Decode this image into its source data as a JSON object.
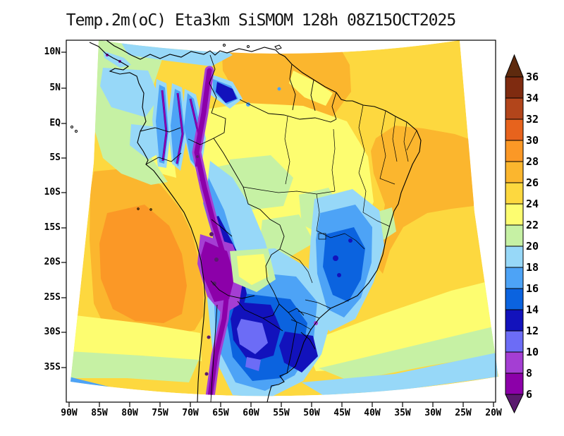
{
  "title": "Temp.2m(oC) Eta3km SiSMOM 128h 08Z15OCT2025",
  "chart_data": {
    "type": "heatmap",
    "title": "Temp.2m(oC) Eta3km SiSMOM 128h 08Z15OCT2025",
    "variable": "Temp.2m(oC)",
    "model": "Eta3km SiSMOM",
    "forecast_hour": "128h",
    "init_time": "08Z15OCT2025",
    "x_ticks": [
      "90W",
      "85W",
      "80W",
      "75W",
      "70W",
      "65W",
      "60W",
      "55W",
      "50W",
      "45W",
      "40W",
      "35W",
      "30W",
      "25W",
      "20W"
    ],
    "y_ticks": [
      "10N",
      "5N",
      "EQ",
      "5S",
      "10S",
      "15S",
      "20S",
      "25S",
      "30S",
      "35S"
    ],
    "colorbar": {
      "units": "oC",
      "tick_labels": [
        "36",
        "34",
        "32",
        "30",
        "28",
        "26",
        "24",
        "22",
        "20",
        "18",
        "16",
        "14",
        "12",
        "10",
        "8",
        "6"
      ],
      "palette": [
        {
          "range": ">36",
          "color": "#5e2a0e"
        },
        {
          "range": "34-36",
          "color": "#7f2b10"
        },
        {
          "range": "32-34",
          "color": "#b2451b"
        },
        {
          "range": "30-32",
          "color": "#e7631d"
        },
        {
          "range": "28-30",
          "color": "#fb9826"
        },
        {
          "range": "26-28",
          "color": "#fbb62e"
        },
        {
          "range": "24-26",
          "color": "#fdd83f"
        },
        {
          "range": "22-24",
          "color": "#fdfd70"
        },
        {
          "range": "20-22",
          "color": "#c6f1a4"
        },
        {
          "range": "18-20",
          "color": "#97d8f8"
        },
        {
          "range": "16-18",
          "color": "#4da3f6"
        },
        {
          "range": "14-16",
          "color": "#0b63df"
        },
        {
          "range": "12-14",
          "color": "#1212bc"
        },
        {
          "range": "10-12",
          "color": "#6c6cf6"
        },
        {
          "range": "8-10",
          "color": "#a43ed3"
        },
        {
          "range": "6-8",
          "color": "#8c00a9"
        },
        {
          "range": "<6",
          "color": "#5a1a6e"
        }
      ]
    },
    "features": [
      {
        "area": "Andes cordillera crest (Colombia to S Chile)",
        "band": "<6-8"
      },
      {
        "area": "Altiplano, S Peru / W Bolivia",
        "band": "6-10"
      },
      {
        "area": "Subtropical SE Pacific offshore Peru-N Chile",
        "band": "28-30"
      },
      {
        "area": "Amazon basin and tropical Atlantic",
        "band": "24-26"
      },
      {
        "area": "Venezuela / Guianas interior",
        "band": "26-28"
      },
      {
        "area": "NE Brazil coast and adjacent Atlantic",
        "band": "26-28"
      },
      {
        "area": "Central Brazil plateau",
        "band": "20-24"
      },
      {
        "area": "E Brazil highlands (Minas Gerais / Bahia)",
        "band": "14-18"
      },
      {
        "area": "Cold pool over S Brazil / Uruguay / NE Argentina",
        "band": "10-16"
      },
      {
        "area": "Paraguay low-land warm pocket",
        "band": "22-24"
      },
      {
        "area": "SW Pacific corner of domain",
        "band": "16-20"
      },
      {
        "area": "S Atlantic along bottom edge",
        "band": "18-22"
      },
      {
        "area": "Caribbean off Colombia",
        "band": "18-20"
      }
    ]
  }
}
